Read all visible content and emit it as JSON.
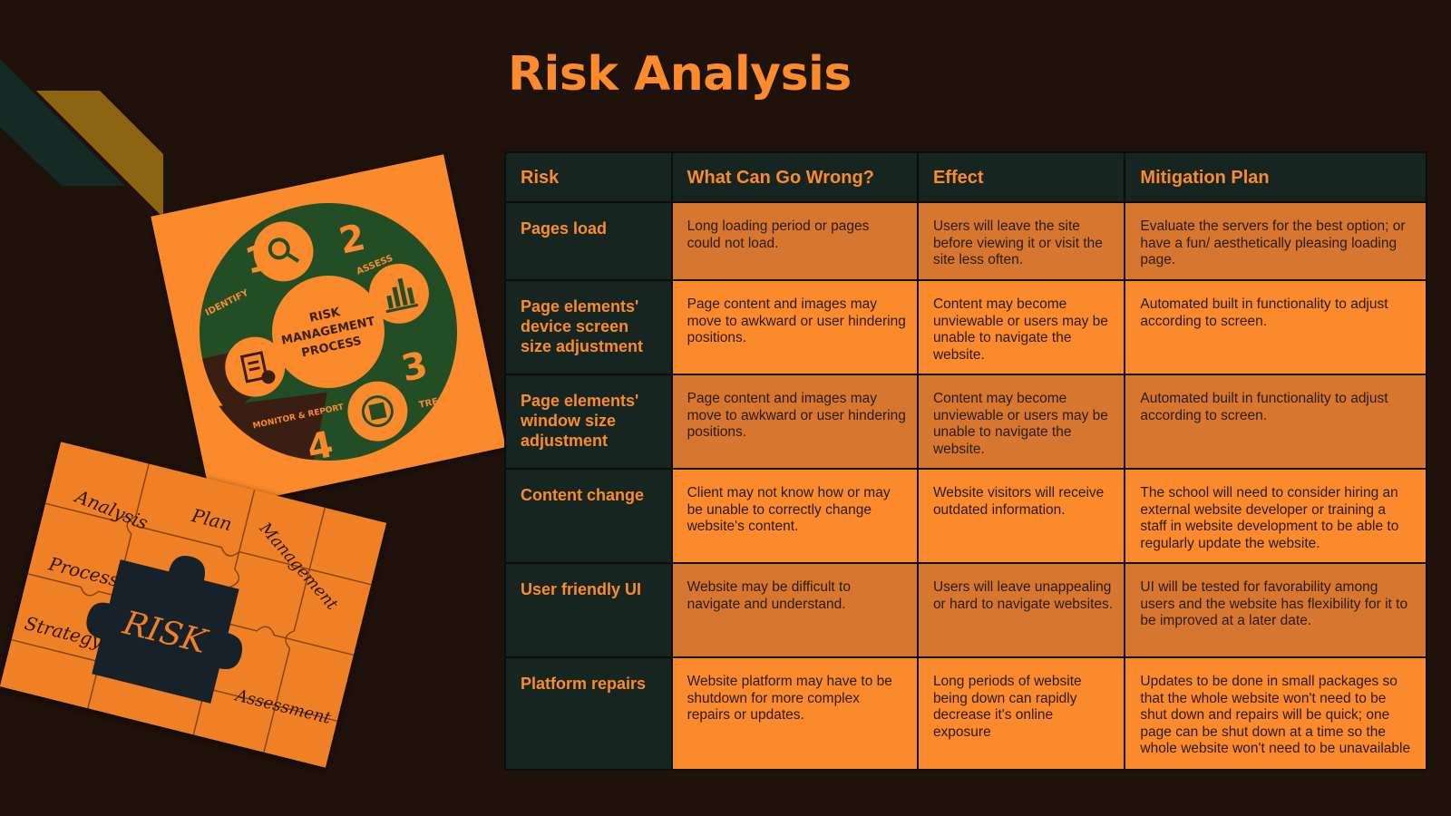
{
  "title": "Risk Analysis",
  "table": {
    "headers": [
      "Risk",
      "What Can Go Wrong?",
      "Effect",
      "Mitigation Plan"
    ],
    "rows": [
      {
        "risk": "Pages load",
        "wrong": "Long loading period or pages could not load.",
        "effect": "Users will leave the site before viewing it or visit the site less often.",
        "mitigation": "Evaluate the servers for the best option; or have a fun/ aesthetically pleasing loading page."
      },
      {
        "risk": "Page elements' device screen size adjustment",
        "wrong": "Page content and images may move to awkward or user hindering positions.",
        "effect": "Content may become unviewable or users may be unable to navigate the website.",
        "mitigation": "Automated built in functionality to adjust according to screen."
      },
      {
        "risk": "Page elements' window size adjustment",
        "wrong": "Page content and images may move to awkward or user hindering positions.",
        "effect": "Content may become unviewable or users may be unable to navigate the website.",
        "mitigation": "Automated built in functionality to adjust according to screen."
      },
      {
        "risk": "Content change",
        "wrong": "Client may not know how or may be unable to correctly change website's content.",
        "effect": "Website visitors will receive outdated information.",
        "mitigation": "The school will need to consider hiring an external website developer or training a staff in website development to be able to regularly update the website."
      },
      {
        "risk": "User friendly UI",
        "wrong": "Website may be difficult to navigate and understand.",
        "effect": "Users will leave unappealing or hard to navigate websites.",
        "mitigation": "UI will be tested for favorability among users and the website has flexibility for it to be improved at a later date."
      },
      {
        "risk": "Platform repairs",
        "wrong": "Website platform may have to be shutdown for more complex repairs or updates.",
        "effect": "Long periods of website being down can rapidly decrease it's online exposure",
        "mitigation": "Updates to be done in small packages so that the whole website won't need to be shut down and repairs will be quick; one page can be shut down at a time so the whole website won't need to be unavailable"
      }
    ]
  },
  "process_image": {
    "steps": [
      {
        "number": "1",
        "label": "IDENTIFY",
        "icon": "magnifier-icon"
      },
      {
        "number": "2",
        "label": "ASSESS",
        "icon": "bar-chart-icon"
      },
      {
        "number": "3",
        "label": "TREAT",
        "icon": "cycle-box-icon"
      },
      {
        "number": "4",
        "label": "MONITOR & REPORT",
        "icon": "clipboard-icon"
      }
    ],
    "center_line1": "RISK",
    "center_line2": "MANAGEMENT",
    "center_line3": "PROCESS"
  },
  "puzzle_image": {
    "center_word": "RISK",
    "words": [
      "Analysis",
      "Plan",
      "Management",
      "Process",
      "Strategy",
      "Assessment"
    ]
  },
  "colors": {
    "background": "#1e120b",
    "accent": "#fb8b2c",
    "dark_green": "#172520",
    "row_dark": "#d7772f",
    "row_light": "#fb8a2c"
  }
}
